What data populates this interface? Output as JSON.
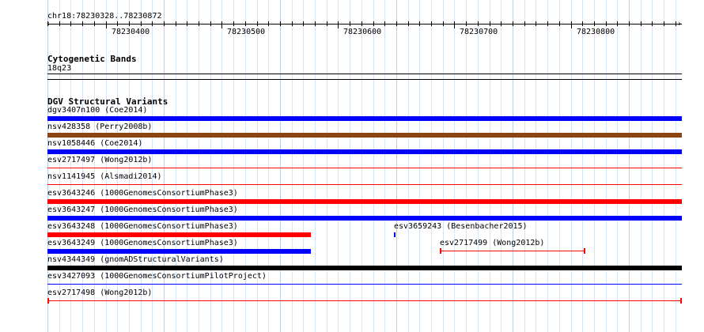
{
  "location": "chr18:78230328..78230872",
  "ruler": {
    "ticks": [
      "78230400",
      "78230500",
      "78230600",
      "78230700",
      "78230800"
    ]
  },
  "cytoband_track": {
    "title": "Cytogenetic Bands",
    "band": "18q23"
  },
  "dgv_track": {
    "title": "DGV Structural Variants",
    "features": [
      {
        "label": "dgv3407n100 (Coe2014)",
        "color": "#0000ff",
        "style": "thick"
      },
      {
        "label": "nsv428358 (Perry2008b)",
        "color": "#8b4513",
        "style": "thick"
      },
      {
        "label": "nsv1058446 (Coe2014)",
        "color": "#0000ff",
        "style": "thick"
      },
      {
        "label": "esv2717497 (Wong2012b)",
        "color": "#ff0000",
        "style": "thin"
      },
      {
        "label": "nsv1141945 (Alsmadi2014)",
        "color": "#ff0000",
        "style": "thin"
      },
      {
        "label": "esv3643246 (1000GenomesConsortiumPhase3)",
        "color": "#ff0000",
        "style": "thick"
      },
      {
        "label": "esv3643247 (1000GenomesConsortiumPhase3)",
        "color": "#0000ff",
        "style": "thick"
      },
      {
        "label": "esv3643248 (1000GenomesConsortiumPhase3)",
        "color": "#ff0000",
        "style": "thick-partial"
      },
      {
        "label": "esv3643249 (1000GenomesConsortiumPhase3)",
        "color": "#0000ff",
        "style": "thick-partial"
      },
      {
        "label": "nsv4344349 (gnomADStructuralVariants)",
        "color": "#000000",
        "style": "thick"
      },
      {
        "label": "esv3427093 (1000GenomesConsortiumPilotProject)",
        "color": "#0000ff",
        "style": "thin"
      },
      {
        "label": "esv2717498 (Wong2012b)",
        "color": "#ff0000",
        "style": "thin-capped"
      }
    ],
    "extra_features": [
      {
        "label": "esv3659243 (Besenbacher2015)",
        "color": "#0000ff",
        "style": "tick"
      },
      {
        "label": "esv2717499 (Wong2012b)",
        "color": "#ff0000",
        "style": "thin-capped"
      }
    ]
  }
}
